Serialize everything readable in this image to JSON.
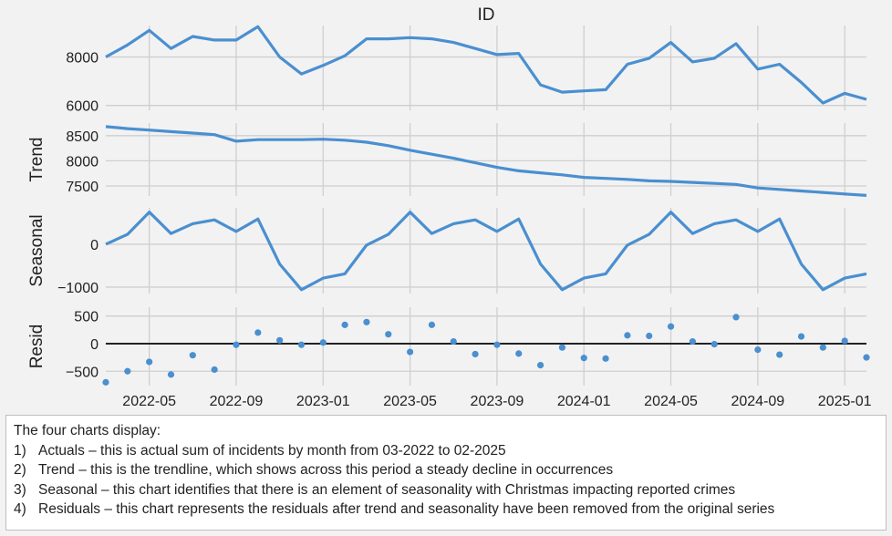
{
  "chart_data": {
    "type": "line",
    "title": "ID",
    "x": [
      "2022-03",
      "2022-04",
      "2022-05",
      "2022-06",
      "2022-07",
      "2022-08",
      "2022-09",
      "2022-10",
      "2022-11",
      "2022-12",
      "2023-01",
      "2023-02",
      "2023-03",
      "2023-04",
      "2023-05",
      "2023-06",
      "2023-07",
      "2023-08",
      "2023-09",
      "2023-10",
      "2023-11",
      "2023-12",
      "2024-01",
      "2024-02",
      "2024-03",
      "2024-04",
      "2024-05",
      "2024-06",
      "2024-07",
      "2024-08",
      "2024-09",
      "2024-10",
      "2024-11",
      "2024-12",
      "2025-01",
      "2025-02"
    ],
    "x_tick_labels": [
      "2022-05",
      "2022-09",
      "2023-01",
      "2023-05",
      "2023-09",
      "2024-01",
      "2024-05",
      "2024-09",
      "2025-01"
    ],
    "panels": [
      {
        "ylabel": "",
        "ylim": [
          5800,
          9300
        ],
        "yticks": [
          6000,
          8000
        ],
        "plot": "line",
        "values": [
          8000,
          8500,
          9100,
          8350,
          8850,
          8700,
          8700,
          9250,
          8000,
          7300,
          7650,
          8050,
          8750,
          8750,
          8800,
          8750,
          8600,
          8350,
          8100,
          8150,
          6850,
          6550,
          6600,
          6650,
          7700,
          7950,
          8600,
          7800,
          7950,
          8550,
          7500,
          7700,
          6950,
          6100,
          6500,
          6250
        ]
      },
      {
        "ylabel": "Trend",
        "ylim": [
          7300,
          8750
        ],
        "yticks": [
          7500,
          8000,
          8500
        ],
        "plot": "line",
        "values": [
          8680,
          8640,
          8610,
          8580,
          8550,
          8520,
          8390,
          8420,
          8420,
          8420,
          8430,
          8410,
          8370,
          8300,
          8210,
          8130,
          8050,
          7960,
          7870,
          7800,
          7760,
          7720,
          7670,
          7650,
          7630,
          7600,
          7590,
          7570,
          7550,
          7530,
          7460,
          7430,
          7400,
          7370,
          7340,
          7310
        ]
      },
      {
        "ylabel": "Seasonal",
        "ylim": [
          -1150,
          850
        ],
        "yticks": [
          -1000,
          0
        ],
        "plot": "line",
        "values": [
          0,
          230,
          750,
          250,
          480,
          570,
          300,
          590,
          -460,
          -1060,
          -790,
          -690,
          -20,
          230,
          750,
          250,
          480,
          570,
          300,
          590,
          -460,
          -1060,
          -790,
          -690,
          -20,
          230,
          750,
          250,
          480,
          570,
          300,
          590,
          -460,
          -1060,
          -790,
          -690
        ]
      },
      {
        "ylabel": "Resid",
        "ylim": [
          -760,
          660
        ],
        "yticks": [
          -500,
          0,
          500
        ],
        "plot": "scatter",
        "baseline": 0,
        "values": [
          -700,
          -500,
          -330,
          -560,
          -210,
          -470,
          -20,
          200,
          60,
          -20,
          20,
          340,
          390,
          170,
          -150,
          340,
          40,
          -190,
          -20,
          -180,
          -390,
          -70,
          -260,
          -270,
          150,
          140,
          310,
          40,
          -10,
          480,
          -110,
          -200,
          130,
          -70,
          50,
          -250
        ]
      }
    ],
    "line_color": "#4a8fd0",
    "grid": true
  },
  "notes": {
    "intro": "The four charts display:",
    "items": [
      {
        "num": "1)",
        "text": "Actuals – this is actual sum of incidents by month from 03-2022 to 02-2025"
      },
      {
        "num": "2)",
        "text": "Trend – this is the trendline, which shows across this period a steady decline in occurrences"
      },
      {
        "num": "3)",
        "text": "Seasonal – this chart identifies that there is an element of seasonality with Christmas impacting reported crimes"
      },
      {
        "num": "4)",
        "text": "Residuals – this chart represents the residuals after trend and seasonality have been removed from the original series"
      }
    ]
  }
}
